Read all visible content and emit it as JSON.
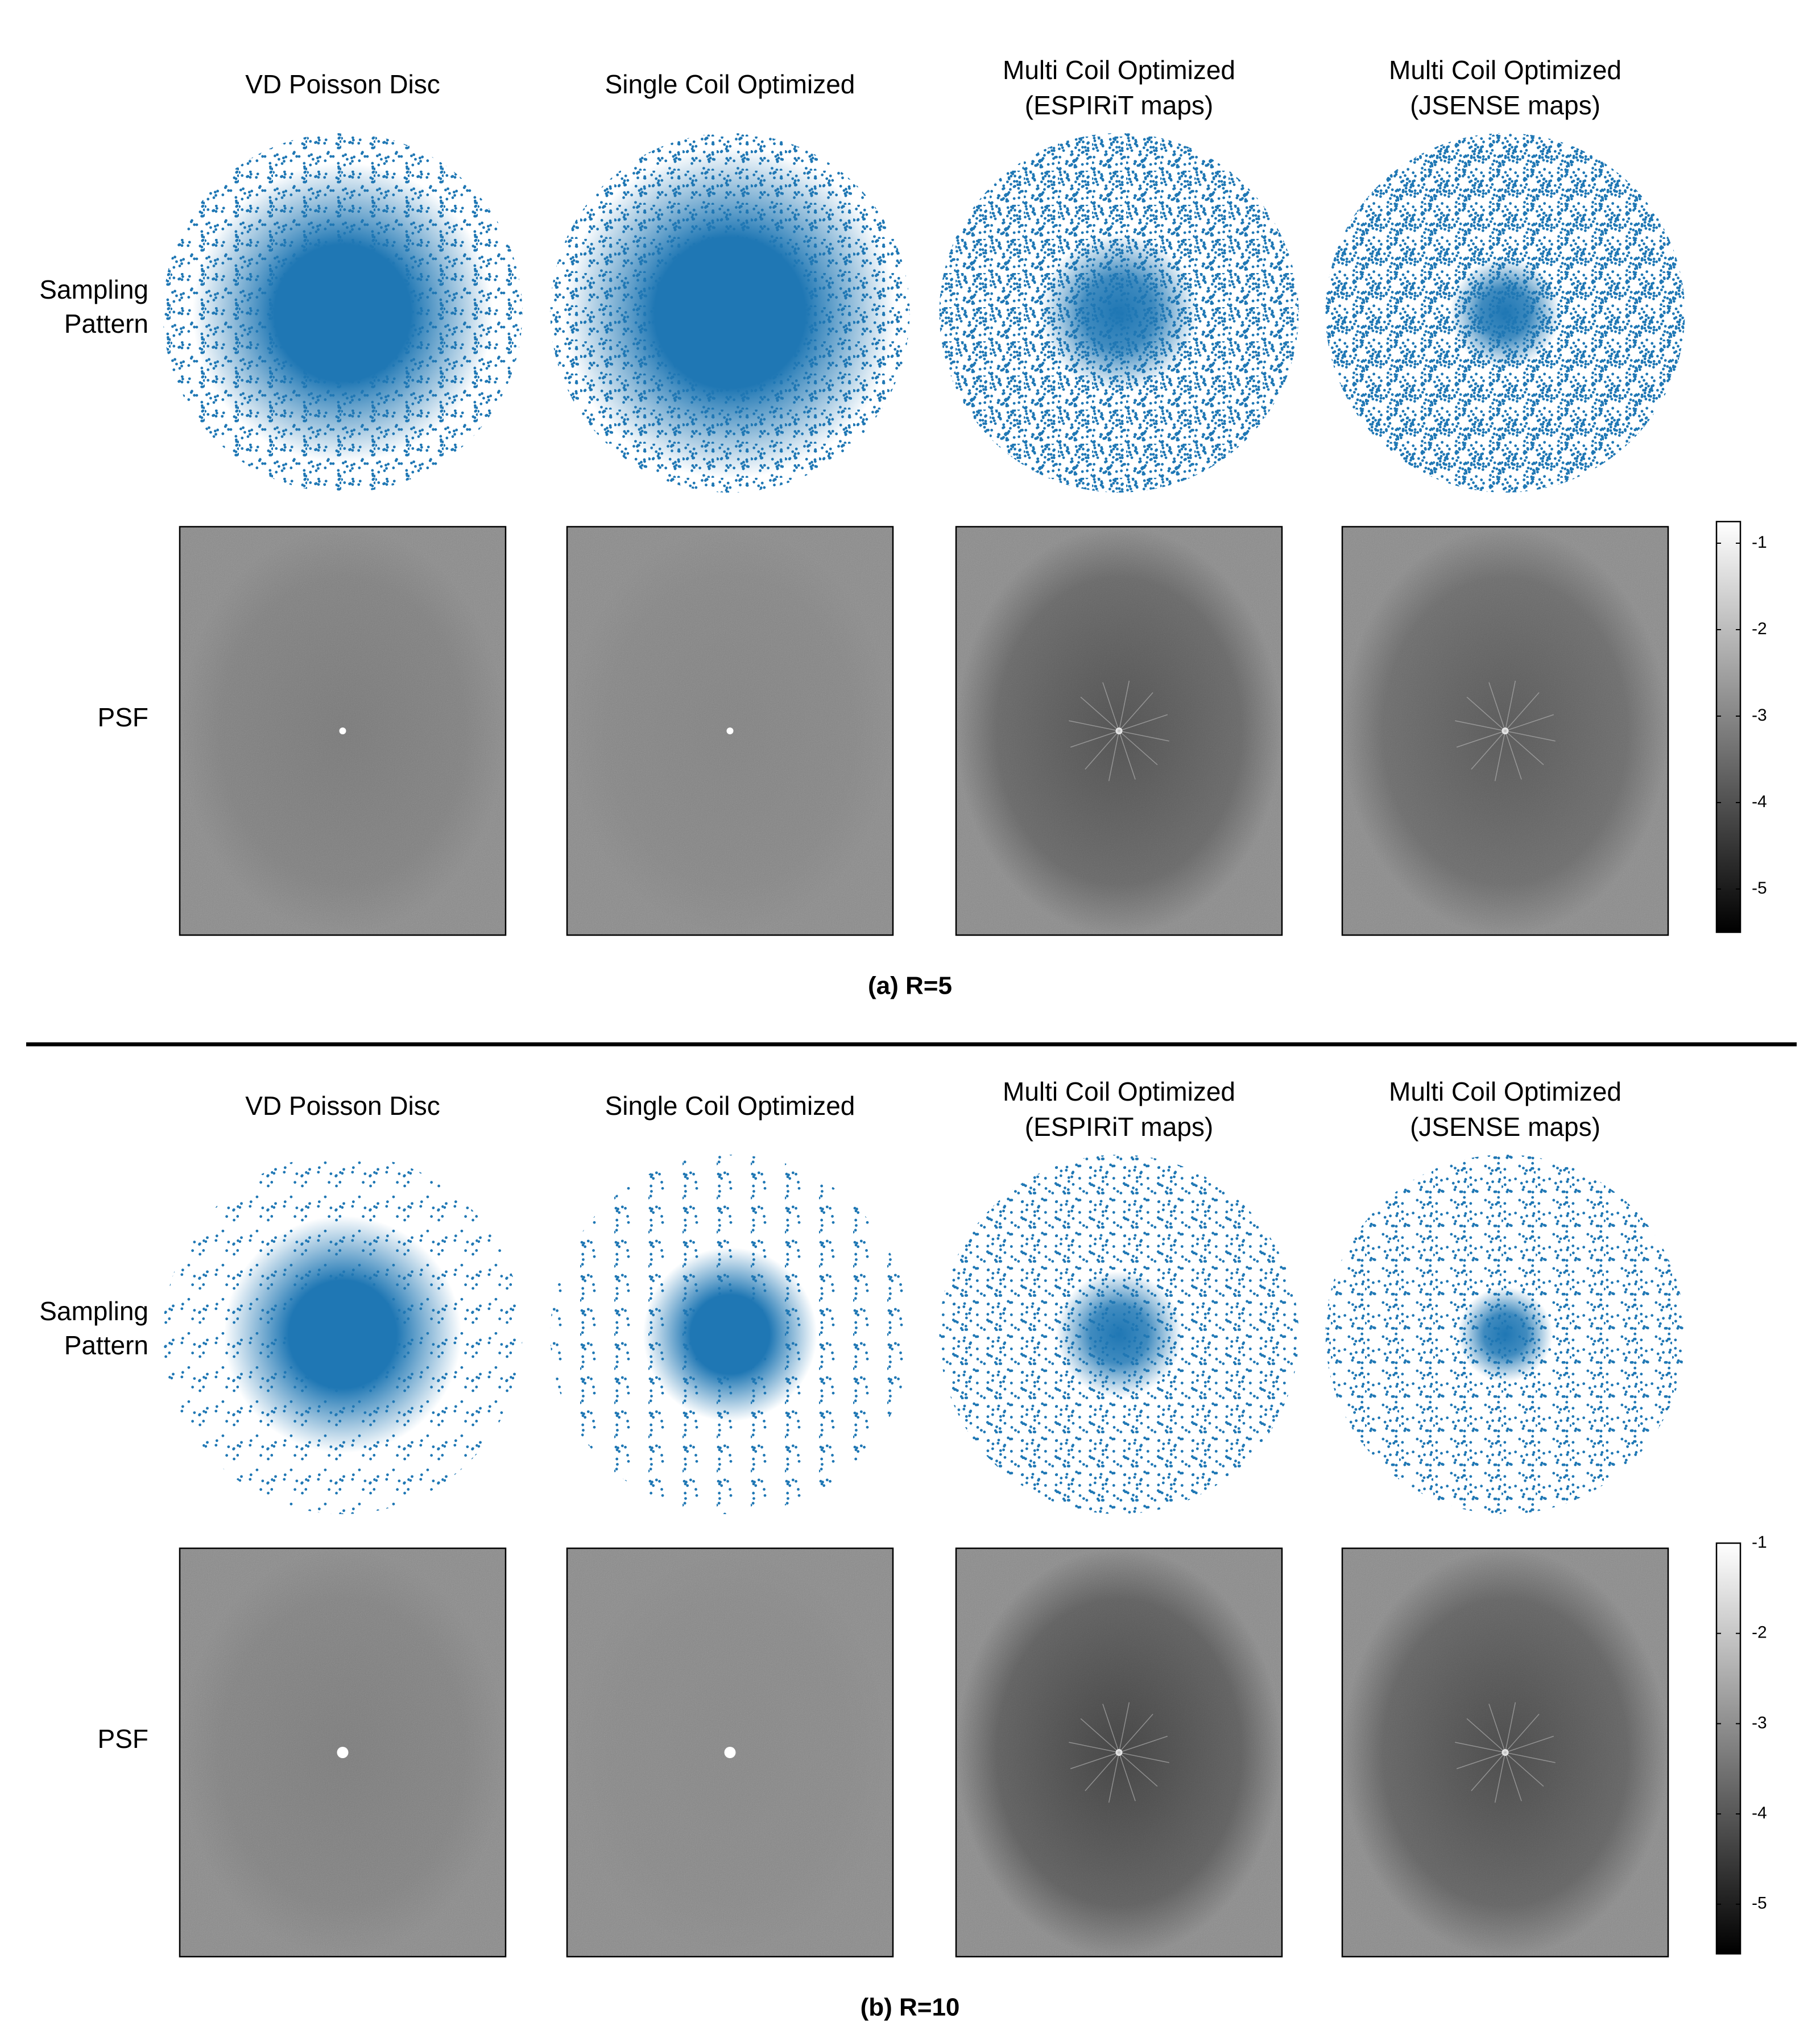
{
  "panels": [
    {
      "columns": [
        {
          "title_lines": [
            "VD Poisson Disc"
          ]
        },
        {
          "title_lines": [
            "Single Coil Optimized"
          ]
        },
        {
          "title_lines": [
            "Multi Coil Optimized",
            "(ESPIRiT maps)"
          ]
        },
        {
          "title_lines": [
            "Multi Coil Optimized",
            "(JSENSE maps)"
          ]
        }
      ],
      "row_labels": {
        "sampling": [
          "Sampling",
          "Pattern"
        ],
        "psf": [
          "PSF"
        ]
      },
      "colorbar": {
        "range": [
          -5.5,
          -0.75
        ],
        "ticks": [
          -1,
          -2,
          -3,
          -4,
          -5
        ]
      },
      "caption": "(a) R=5"
    },
    {
      "columns": [
        {
          "title_lines": [
            "VD Poisson Disc"
          ]
        },
        {
          "title_lines": [
            "Single Coil Optimized"
          ]
        },
        {
          "title_lines": [
            "Multi Coil Optimized",
            "(ESPIRiT maps)"
          ]
        },
        {
          "title_lines": [
            "Multi Coil Optimized",
            "(JSENSE maps)"
          ]
        }
      ],
      "row_labels": {
        "sampling": [
          "Sampling",
          "Pattern"
        ],
        "psf": [
          "PSF"
        ]
      },
      "colorbar": {
        "range": [
          -5.55,
          -1
        ],
        "ticks": [
          -1,
          -2,
          -3,
          -4,
          -5
        ]
      },
      "caption": "(b) R=10"
    }
  ]
}
